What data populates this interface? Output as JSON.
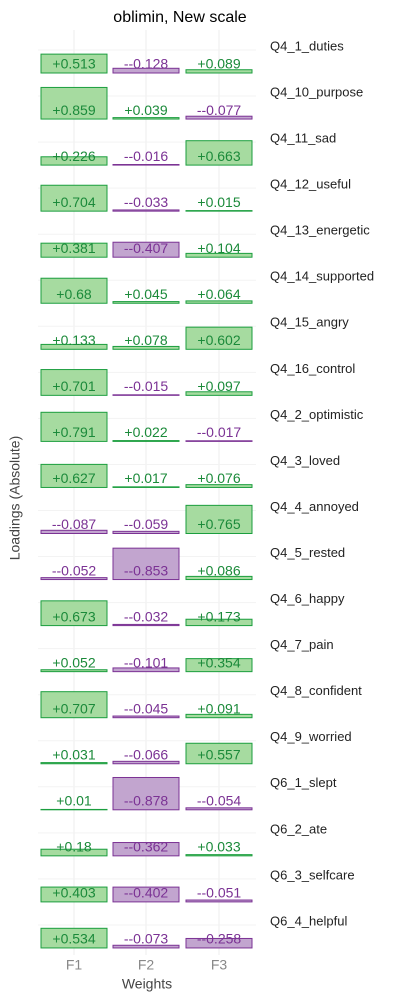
{
  "chart_data": {
    "type": "bar",
    "title": "oblimin, New scale",
    "x_label": "Weights",
    "y_label": "Loadings (Absolute)",
    "categories": [
      "F1",
      "F2",
      "F3"
    ],
    "ylim": [
      0,
      1.25
    ],
    "grid": true,
    "pos_color": "#a6dba0",
    "pos_line": "#1b9e3e",
    "neg_color": "#c2a5cf",
    "neg_line": "#7b3294",
    "series": [
      {
        "name": "Q4_1_duties",
        "values": [
          0.513,
          -0.128,
          0.089
        ],
        "value_labels": [
          "+0.513",
          "--0.128",
          "+0.089"
        ]
      },
      {
        "name": "Q4_10_purpose",
        "values": [
          0.859,
          0.039,
          -0.077
        ],
        "value_labels": [
          "+0.859",
          "+0.039",
          "--0.077"
        ]
      },
      {
        "name": "Q4_11_sad",
        "values": [
          0.226,
          -0.016,
          0.663
        ],
        "value_labels": [
          "+0.226",
          "--0.016",
          "+0.663"
        ]
      },
      {
        "name": "Q4_12_useful",
        "values": [
          0.704,
          -0.033,
          0.015
        ],
        "value_labels": [
          "+0.704",
          "--0.033",
          "+0.015"
        ]
      },
      {
        "name": "Q4_13_energetic",
        "values": [
          0.381,
          -0.407,
          0.104
        ],
        "value_labels": [
          "+0.381",
          "--0.407",
          "+0.104"
        ]
      },
      {
        "name": "Q4_14_supported",
        "values": [
          0.68,
          0.045,
          0.064
        ],
        "value_labels": [
          "+0.68",
          "+0.045",
          "+0.064"
        ]
      },
      {
        "name": "Q4_15_angry",
        "values": [
          0.133,
          0.078,
          0.602
        ],
        "value_labels": [
          "+0.133",
          "+0.078",
          "+0.602"
        ]
      },
      {
        "name": "Q4_16_control",
        "values": [
          0.701,
          -0.015,
          0.097
        ],
        "value_labels": [
          "+0.701",
          "--0.015",
          "+0.097"
        ]
      },
      {
        "name": "Q4_2_optimistic",
        "values": [
          0.791,
          0.022,
          -0.017
        ],
        "value_labels": [
          "+0.791",
          "+0.022",
          "--0.017"
        ]
      },
      {
        "name": "Q4_3_loved",
        "values": [
          0.627,
          0.017,
          0.076
        ],
        "value_labels": [
          "+0.627",
          "+0.017",
          "+0.076"
        ]
      },
      {
        "name": "Q4_4_annoyed",
        "values": [
          -0.087,
          -0.059,
          0.765
        ],
        "value_labels": [
          "--0.087",
          "--0.059",
          "+0.765"
        ]
      },
      {
        "name": "Q4_5_rested",
        "values": [
          -0.052,
          -0.853,
          0.086
        ],
        "value_labels": [
          "--0.052",
          "--0.853",
          "+0.086"
        ]
      },
      {
        "name": "Q4_6_happy",
        "values": [
          0.673,
          -0.032,
          0.173
        ],
        "value_labels": [
          "+0.673",
          "--0.032",
          "+0.173"
        ]
      },
      {
        "name": "Q4_7_pain",
        "values": [
          0.052,
          -0.101,
          0.354
        ],
        "value_labels": [
          "+0.052",
          "--0.101",
          "+0.354"
        ]
      },
      {
        "name": "Q4_8_confident",
        "values": [
          0.707,
          -0.045,
          0.091
        ],
        "value_labels": [
          "+0.707",
          "--0.045",
          "+0.091"
        ]
      },
      {
        "name": "Q4_9_worried",
        "values": [
          0.031,
          -0.066,
          0.557
        ],
        "value_labels": [
          "+0.031",
          "--0.066",
          "+0.557"
        ]
      },
      {
        "name": "Q6_1_slept",
        "values": [
          0.01,
          -0.878,
          -0.054
        ],
        "value_labels": [
          "+0.01",
          "--0.878",
          "--0.054"
        ]
      },
      {
        "name": "Q6_2_ate",
        "values": [
          0.18,
          -0.362,
          0.033
        ],
        "value_labels": [
          "+0.18",
          "--0.362",
          "+0.033"
        ]
      },
      {
        "name": "Q6_3_selfcare",
        "values": [
          0.403,
          -0.402,
          -0.051
        ],
        "value_labels": [
          "+0.403",
          "--0.402",
          "--0.051"
        ]
      },
      {
        "name": "Q6_4_helpful",
        "values": [
          0.534,
          -0.073,
          -0.258
        ],
        "value_labels": [
          "+0.534",
          "--0.073",
          "--0.258"
        ]
      }
    ]
  }
}
